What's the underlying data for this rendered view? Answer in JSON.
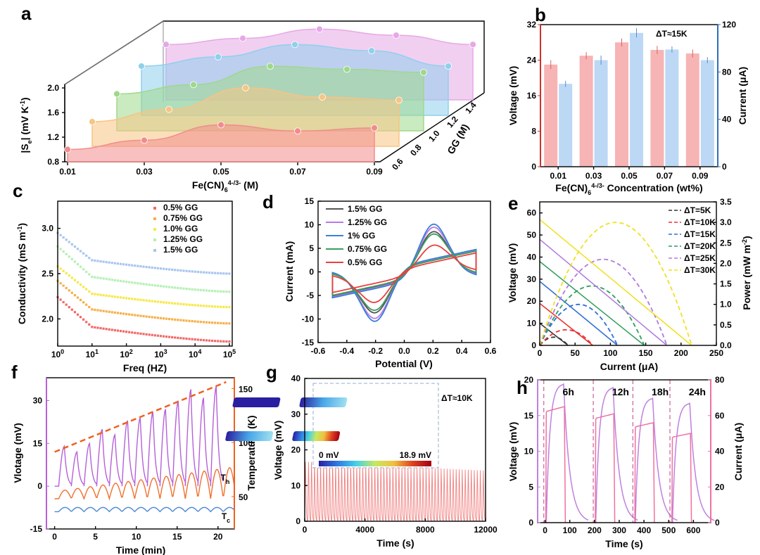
{
  "chart_data": [
    {
      "panel": "a",
      "type": "area",
      "xlabel_base": "Fe(CN)",
      "xlabel_sub": "6",
      "xlabel_sup": "4-/3-",
      "xlabel_tail": " (M)",
      "ylabel": "|Se| (mV K-1)",
      "ylabel_base": "|S",
      "ylabel_sub": "e",
      "ylabel_tail": "| (mV K",
      "ylabel_sup": "-1",
      "ylabel_close": ")",
      "zlabel": "GG (M)",
      "x_ticks": [
        "0.01",
        "0.03",
        "0.05",
        "0.07",
        "0.09"
      ],
      "y_ticks": [
        "0.8",
        "1.2",
        "1.6",
        "2.0"
      ],
      "z_ticks": [
        "0.6",
        "0.8",
        "1.0",
        "1.2",
        "1.4"
      ],
      "x": [
        0.01,
        0.03,
        0.05,
        0.07,
        0.09
      ],
      "series": [
        {
          "gg": 0.6,
          "values": [
            1.0,
            1.15,
            1.4,
            1.3,
            1.35
          ],
          "color": "#f28c8c"
        },
        {
          "gg": 0.8,
          "values": [
            1.2,
            1.4,
            1.75,
            1.6,
            1.55
          ],
          "color": "#f7c483"
        },
        {
          "gg": 1.0,
          "values": [
            1.4,
            1.55,
            1.85,
            1.8,
            1.75
          ],
          "color": "#9fd88c"
        },
        {
          "gg": 1.2,
          "values": [
            1.6,
            1.75,
            1.95,
            1.85,
            1.6
          ],
          "color": "#8fd0ec"
        },
        {
          "gg": 1.4,
          "values": [
            1.7,
            1.8,
            1.95,
            1.85,
            1.7
          ],
          "color": "#e6a8e6"
        }
      ]
    },
    {
      "panel": "b",
      "type": "bar",
      "annotation": "ΔT≈15K",
      "categories": [
        "0.01",
        "0.03",
        "0.05",
        "0.07",
        "0.09"
      ],
      "xlabel_base": "Fe(CN)",
      "xlabel_sub": "6",
      "xlabel_sup": "4-/3-",
      "xlabel_tail": " Concentration (wt%)",
      "ylabel": "Voltage (mV)",
      "y2label": "Current (μA)",
      "ylim": [
        0,
        32
      ],
      "y2lim": [
        0,
        120
      ],
      "yticks": [
        "0",
        "8",
        "16",
        "24",
        "32"
      ],
      "y2ticks": [
        "0",
        "40",
        "80",
        "120"
      ],
      "series": [
        {
          "name": "Voltage",
          "values": [
            23,
            25,
            28,
            26.3,
            25.5
          ],
          "err": [
            1,
            0.8,
            0.9,
            0.9,
            0.9
          ],
          "color": "#f6b4b4"
        },
        {
          "name": "Current",
          "values": [
            70,
            90,
            113,
            99,
            90
          ],
          "err": [
            2,
            3,
            3,
            2,
            2
          ],
          "color": "#bcd8f5"
        }
      ]
    },
    {
      "panel": "c",
      "type": "scatter",
      "xlabel": "Freq (HZ)",
      "ylabel": "Conductivity (mS m-1)",
      "ylabel_base": "Conductivity (mS m",
      "ylabel_sup": "-1",
      "ylabel_close": ")",
      "xscale": "log",
      "xlim_exp": [
        0,
        5
      ],
      "ylim": [
        1.7,
        3.3
      ],
      "yticks": [
        "2.0",
        "2.5",
        "3.0"
      ],
      "xticks_exp": [
        "0",
        "1",
        "2",
        "3",
        "4",
        "5"
      ],
      "series": [
        {
          "name": "0.5% GG",
          "color": "#f06a6a",
          "start": 2.24,
          "end": 1.75
        },
        {
          "name": "0.75% GG",
          "color": "#f5b04a",
          "start": 2.42,
          "end": 1.95
        },
        {
          "name": "1.0% GG",
          "color": "#f5e94a",
          "start": 2.58,
          "end": 2.13
        },
        {
          "name": "1.25% GG",
          "color": "#b5f0b5",
          "start": 2.8,
          "end": 2.3
        },
        {
          "name": "1.5% GG",
          "color": "#a9c5f0",
          "start": 2.95,
          "end": 2.5
        }
      ]
    },
    {
      "panel": "d",
      "type": "line",
      "xlabel": "Potential (V)",
      "ylabel": "Current (mA)",
      "xlim": [
        -0.6,
        0.6
      ],
      "ylim": [
        -15,
        15
      ],
      "xticks": [
        "-0.6",
        "-0.4",
        "-0.2",
        "0.0",
        "0.2",
        "0.4",
        "0.6"
      ],
      "yticks": [
        "-15",
        "-10",
        "-5",
        "0",
        "5",
        "10",
        "15"
      ],
      "series": [
        {
          "name": "1.5% GG",
          "color": "#555555",
          "peak": 10,
          "trough": -9.5
        },
        {
          "name": "1.25% GG",
          "color": "#b77ae8",
          "peak": 11.3,
          "trough": -11
        },
        {
          "name": "1% GG",
          "color": "#3c7fd6",
          "peak": 12.2,
          "trough": -11.8
        },
        {
          "name": "0.75% GG",
          "color": "#3a9e5c",
          "peak": 9.3,
          "trough": -8.8
        },
        {
          "name": "0.5% GG",
          "color": "#e84040",
          "peak": 6,
          "trough": -6.5
        }
      ]
    },
    {
      "panel": "e",
      "type": "line",
      "xlabel": "Current (μA)",
      "ylabel": "Voltage (mV)",
      "y2label": "Power (mW m-2)",
      "y2label_base": "Power (mW m",
      "y2label_sup": "-2",
      "y2label_close": ")",
      "xlim": [
        0,
        250
      ],
      "ylim": [
        0,
        65
      ],
      "y2lim": [
        0,
        3.5
      ],
      "xticks": [
        "0",
        "50",
        "100",
        "150",
        "200",
        "250"
      ],
      "yticks": [
        "0",
        "10",
        "20",
        "30",
        "40",
        "50",
        "60"
      ],
      "y2ticks": [
        "0.0",
        "0.5",
        "1.0",
        "1.5",
        "2.0",
        "2.5",
        "3.0",
        "3.5"
      ],
      "series": [
        {
          "name": "ΔT=5K",
          "color": "#333333",
          "voc": 10,
          "isc": 40,
          "pmax": 0.2
        },
        {
          "name": "ΔT=10K",
          "color": "#e83030",
          "voc": 19,
          "isc": 75,
          "pmax": 0.38
        },
        {
          "name": "ΔT=15K",
          "color": "#2f6fd6",
          "voc": 29,
          "isc": 110,
          "pmax": 1.0
        },
        {
          "name": "ΔT=20K",
          "color": "#2e9e5a",
          "voc": 38,
          "isc": 148,
          "pmax": 1.45
        },
        {
          "name": "ΔT=25K",
          "color": "#b07ae0",
          "voc": 48,
          "isc": 180,
          "pmax": 2.1
        },
        {
          "name": "ΔT=30K",
          "color": "#f0e020",
          "voc": 57,
          "isc": 215,
          "pmax": 3.0
        }
      ]
    },
    {
      "panel": "f",
      "type": "line",
      "xlabel": "Time (min)",
      "ylabel": "Vlotage (mV)",
      "y2label": "Temperature (K)",
      "xlim": [
        -1,
        22
      ],
      "ylim": [
        -15,
        38
      ],
      "y2lim": [
        20,
        160
      ],
      "xticks": [
        "0",
        "5",
        "10",
        "15",
        "20"
      ],
      "yticks": [
        "-15",
        "0",
        "15",
        "30"
      ],
      "y2ticks": [
        "50",
        "100",
        "150"
      ],
      "th_label": "T",
      "th_sub": "h",
      "tc_label": "T",
      "tc_sub": "c",
      "peaks": [
        14,
        12,
        15,
        20,
        18,
        23,
        24,
        26,
        27,
        30,
        34,
        31,
        35
      ]
    },
    {
      "panel": "g",
      "type": "line",
      "xlabel": "Time (s)",
      "ylabel": "Voltage (mV)",
      "annotation": "ΔT≈10K",
      "xlim": [
        0,
        12000
      ],
      "ylim": [
        0,
        40
      ],
      "xticks": [
        "0",
        "4000",
        "8000",
        "12000"
      ],
      "yticks": [
        "0",
        "10",
        "20",
        "30",
        "40"
      ],
      "inset_min": "0 mV",
      "inset_max": "18.9 mV",
      "cycles": 60,
      "peak_start": 20,
      "peak_end": 17
    },
    {
      "panel": "h",
      "type": "line",
      "xlabel": "Time (s)",
      "ylabel": "Voltage (mV)",
      "y2label": "Current (μA)",
      "xlim": [
        -30,
        670
      ],
      "ylim": [
        0,
        20
      ],
      "y2lim": [
        0,
        80
      ],
      "xticks": [
        "0",
        "100",
        "200",
        "300",
        "400",
        "500",
        "600"
      ],
      "yticks": [
        "0",
        "5",
        "10",
        "15",
        "20"
      ],
      "y2ticks": [
        "0",
        "20",
        "40",
        "60",
        "80"
      ],
      "segments": [
        {
          "label": "6h",
          "start": 0,
          "v": 19.5,
          "i": 65
        },
        {
          "label": "12h",
          "start": 200,
          "v": 19,
          "i": 61
        },
        {
          "label": "18h",
          "start": 360,
          "v": 17.5,
          "i": 56
        },
        {
          "label": "24h",
          "start": 510,
          "v": 16.8,
          "i": 50
        }
      ]
    }
  ]
}
